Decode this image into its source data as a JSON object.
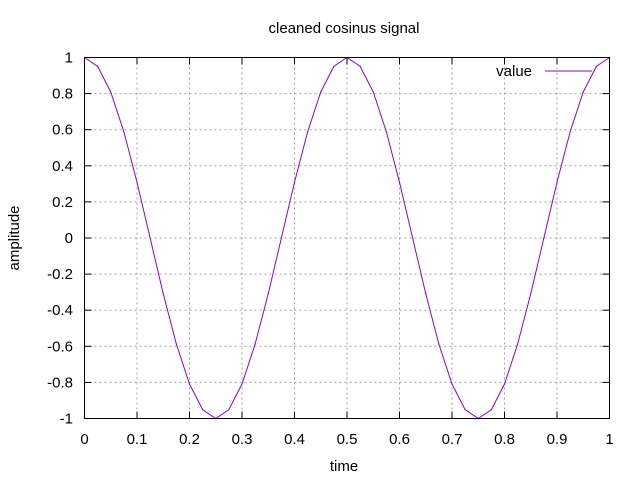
{
  "chart_data": {
    "type": "line",
    "title": "cleaned cosinus signal",
    "xlabel": "time",
    "ylabel": "amplitude",
    "xlim": [
      0,
      1
    ],
    "ylim": [
      -1,
      1
    ],
    "grid": true,
    "legend_position": "top-right",
    "x_ticks": [
      "0",
      "0.1",
      "0.2",
      "0.3",
      "0.4",
      "0.5",
      "0.6",
      "0.7",
      "0.8",
      "0.9",
      "1"
    ],
    "y_ticks": [
      "1",
      "0.8",
      "0.6",
      "0.4",
      "0.2",
      "0",
      "-0.2",
      "-0.4",
      "-0.6",
      "-0.8",
      "-1"
    ],
    "series": [
      {
        "name": "value",
        "color": "#9400d3",
        "x": [
          0,
          0.025,
          0.05,
          0.075,
          0.1,
          0.125,
          0.15,
          0.175,
          0.2,
          0.225,
          0.25,
          0.275,
          0.3,
          0.325,
          0.35,
          0.375,
          0.4,
          0.425,
          0.45,
          0.475,
          0.5,
          0.525,
          0.55,
          0.575,
          0.6,
          0.625,
          0.65,
          0.675,
          0.7,
          0.725,
          0.75,
          0.775,
          0.8,
          0.825,
          0.85,
          0.875,
          0.9,
          0.925,
          0.95,
          0.975,
          1
        ],
        "y": [
          1,
          0.951,
          0.809,
          0.588,
          0.309,
          0,
          -0.309,
          -0.588,
          -0.809,
          -0.951,
          -1,
          -0.951,
          -0.809,
          -0.588,
          -0.309,
          0,
          0.309,
          0.588,
          0.809,
          0.951,
          1,
          0.951,
          0.809,
          0.588,
          0.309,
          0,
          -0.309,
          -0.588,
          -0.809,
          -0.951,
          -1,
          -0.951,
          -0.809,
          -0.588,
          -0.309,
          0,
          0.309,
          0.588,
          0.809,
          0.951,
          1
        ]
      }
    ]
  }
}
